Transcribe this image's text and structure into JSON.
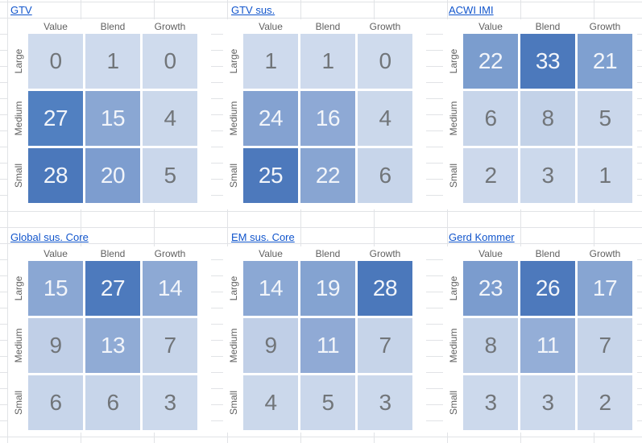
{
  "app": {
    "surface": "spreadsheet-canvas"
  },
  "heatmap_style": {
    "number_color_on_light": "#717579",
    "number_color_on_dark": "#f2f5fa",
    "dark_text_from": 11,
    "header_color": "#616161",
    "link_color": "#1155cc",
    "gridline_color": "#e1e3e6"
  },
  "chart_data": [
    {
      "type": "heatmap",
      "title": "GTV",
      "x_categories": [
        "Value",
        "Blend",
        "Growth"
      ],
      "y_categories": [
        "Large",
        "Medium",
        "Small"
      ],
      "values": [
        [
          0,
          1,
          0
        ],
        [
          27,
          15,
          4
        ],
        [
          28,
          20,
          5
        ]
      ],
      "cell_colors": [
        [
          "#cfdbed",
          "#cedaed",
          "#cfdbed"
        ],
        [
          "#5180c1",
          "#8aa7d3",
          "#cbd8eb"
        ],
        [
          "#4b78bb",
          "#7d9dcf",
          "#cad7eb"
        ]
      ]
    },
    {
      "type": "heatmap",
      "title": "GTV sus.",
      "x_categories": [
        "Value",
        "Blend",
        "Growth"
      ],
      "y_categories": [
        "Large",
        "Medium",
        "Small"
      ],
      "values": [
        [
          1,
          1,
          0
        ],
        [
          24,
          16,
          4
        ],
        [
          25,
          22,
          6
        ]
      ],
      "cell_colors": [
        [
          "#cedaed",
          "#cedaed",
          "#cfdbed"
        ],
        [
          "#84a2d1",
          "#8ea9d5",
          "#cbd8eb"
        ],
        [
          "#4d79bc",
          "#88a5d2",
          "#c7d5ea"
        ]
      ]
    },
    {
      "type": "heatmap",
      "title": "ACWI IMI",
      "x_categories": [
        "Value",
        "Blend",
        "Growth"
      ],
      "y_categories": [
        "Large",
        "Medium",
        "Small"
      ],
      "values": [
        [
          22,
          33,
          21
        ],
        [
          6,
          8,
          5
        ],
        [
          2,
          3,
          1
        ]
      ],
      "cell_colors": [
        [
          "#7b9dce",
          "#4c79bc",
          "#7fa0d0"
        ],
        [
          "#c7d5ea",
          "#c3d2e8",
          "#cad7eb"
        ],
        [
          "#cdd9ec",
          "#ccd9ec",
          "#cedaed"
        ]
      ]
    },
    {
      "type": "heatmap",
      "title": "Global sus. Core",
      "x_categories": [
        "Value",
        "Blend",
        "Growth"
      ],
      "y_categories": [
        "Large",
        "Medium",
        "Small"
      ],
      "values": [
        [
          15,
          27,
          14
        ],
        [
          9,
          13,
          7
        ],
        [
          6,
          6,
          3
        ]
      ],
      "cell_colors": [
        [
          "#8aa7d3",
          "#4d7abd",
          "#8da9d4"
        ],
        [
          "#c0cfe7",
          "#90abd5",
          "#c6d4e9"
        ],
        [
          "#c7d5ea",
          "#c7d5ea",
          "#ccd9ec"
        ]
      ]
    },
    {
      "type": "heatmap",
      "title": "EM sus. Core",
      "x_categories": [
        "Value",
        "Blend",
        "Growth"
      ],
      "y_categories": [
        "Large",
        "Medium",
        "Small"
      ],
      "values": [
        [
          14,
          19,
          28
        ],
        [
          9,
          11,
          7
        ],
        [
          4,
          5,
          3
        ]
      ],
      "cell_colors": [
        [
          "#8ba8d4",
          "#84a3d1",
          "#4b78bb"
        ],
        [
          "#c0cfe7",
          "#90aad5",
          "#c6d4e9"
        ],
        [
          "#cbd8eb",
          "#cad7eb",
          "#ccd9ec"
        ]
      ]
    },
    {
      "type": "heatmap",
      "title": "Gerd Kommer",
      "x_categories": [
        "Value",
        "Blend",
        "Growth"
      ],
      "y_categories": [
        "Large",
        "Medium",
        "Small"
      ],
      "values": [
        [
          23,
          26,
          17
        ],
        [
          8,
          11,
          7
        ],
        [
          3,
          3,
          2
        ]
      ],
      "cell_colors": [
        [
          "#7b9cce",
          "#4d79bc",
          "#87a5d2"
        ],
        [
          "#c3d2e8",
          "#94aed7",
          "#c6d4e9"
        ],
        [
          "#ccd9ec",
          "#ccd9ec",
          "#cdd9ec"
        ]
      ]
    }
  ]
}
